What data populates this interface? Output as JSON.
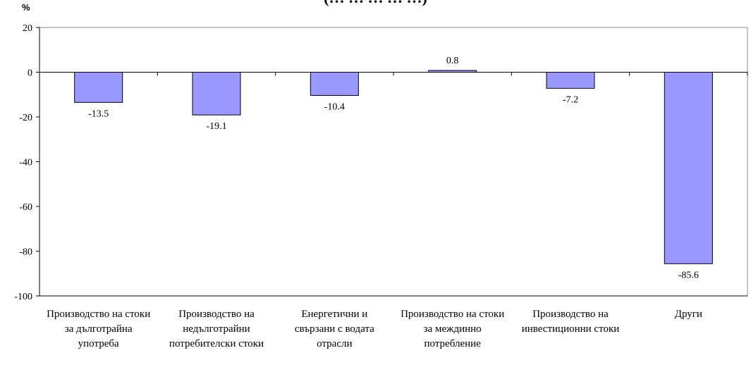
{
  "chart_data": {
    "type": "bar",
    "title": "(… … … … …)",
    "ylabel": "%",
    "xlabel": "",
    "ylim": [
      -100,
      20
    ],
    "yticks": [
      20,
      0,
      -20,
      -40,
      -60,
      -80,
      -100
    ],
    "categories": [
      "Производство на стоки за дълготрайна употреба",
      "Производство на недълготрайни потребителски стоки",
      "Енергетични и свързани с водата отрасли",
      "Производство на стоки за междинно потребление",
      "Производство на инвестиционни стоки",
      "Други"
    ],
    "values": [
      -13.5,
      -19.1,
      -10.4,
      0.8,
      -7.2,
      -85.6
    ],
    "data_labels": [
      "-13.5",
      "-19.1",
      "-10.4",
      "0.8",
      "-7.2",
      "-85.6"
    ],
    "bar_color": "#9999ff",
    "bar_border_color": "#000000",
    "grid": false,
    "legend": "none"
  }
}
